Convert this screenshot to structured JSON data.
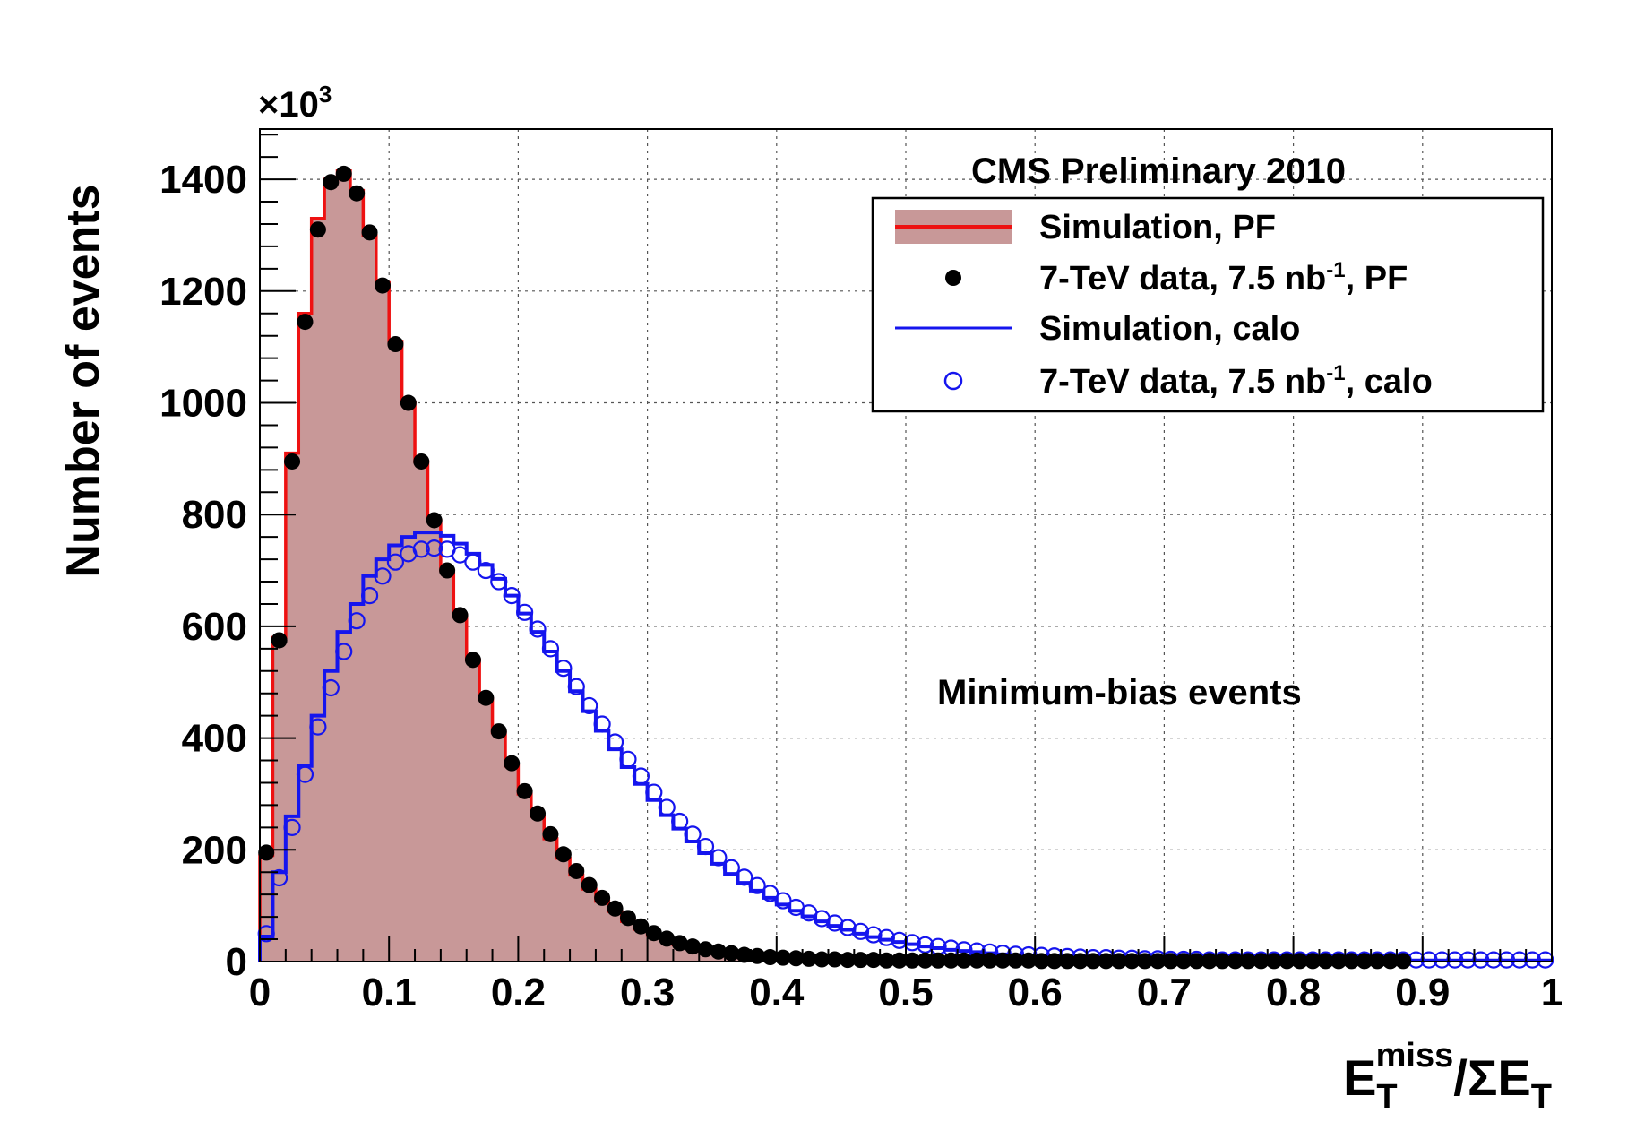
{
  "chart_data": {
    "type": "histogram",
    "title": "",
    "xlabel": "E_T^miss/ΣE_T",
    "xlabel_parts": {
      "main": "E",
      "sub": "T",
      "sup": "miss",
      "mid": "/ΣE",
      "sub2": "T"
    },
    "ylabel": "Number of events",
    "y_multiplier_text": {
      "prefix": "×10",
      "sup": "3"
    },
    "xlim": [
      0,
      1
    ],
    "ylim": [
      0,
      1490
    ],
    "x_ticks": [
      0,
      0.1,
      0.2,
      0.3,
      0.4,
      0.5,
      0.6,
      0.7,
      0.8,
      0.9,
      1
    ],
    "x_tick_labels": [
      "0",
      "0.1",
      "0.2",
      "0.3",
      "0.4",
      "0.5",
      "0.6",
      "0.7",
      "0.8",
      "0.9",
      "1"
    ],
    "y_ticks": [
      0,
      200,
      400,
      600,
      800,
      1000,
      1200,
      1400
    ],
    "y_tick_labels": [
      "0",
      "200",
      "400",
      "600",
      "800",
      "1000",
      "1200",
      "1400"
    ],
    "grid": true,
    "legend_position": "top-right",
    "annotations": [
      "CMS Preliminary 2010",
      "Minimum-bias events"
    ],
    "bin_width": 0.01,
    "pf_range": [
      0,
      0.89
    ],
    "calo_range": [
      0,
      1
    ],
    "series": [
      {
        "name": "Simulation, PF",
        "name_parts": [
          "Simulation, PF"
        ],
        "kind": "filled-histogram",
        "fill_color": "#c89898",
        "line_color": "#ee1111",
        "values": [
          190,
          580,
          910,
          1160,
          1330,
          1400,
          1415,
          1380,
          1300,
          1215,
          1110,
          1000,
          895,
          790,
          700,
          620,
          540,
          470,
          410,
          350,
          300,
          260,
          220,
          185,
          155,
          130,
          108,
          90,
          72,
          58,
          47,
          38,
          30,
          24,
          19,
          15,
          12,
          9,
          7,
          6,
          5,
          4,
          3,
          3,
          2,
          2,
          1,
          1,
          1,
          1,
          1,
          1,
          1,
          1,
          1,
          1,
          0,
          0,
          0,
          0,
          0,
          0,
          0,
          0,
          0,
          0,
          0,
          0,
          0,
          0,
          0,
          0,
          0,
          0,
          0,
          0,
          0,
          0,
          0,
          0,
          0,
          0,
          0,
          0,
          0,
          0,
          0,
          0,
          0
        ]
      },
      {
        "name": "7-TeV data, 7.5 nb-1, PF",
        "name_parts": [
          "7-TeV data, 7.5 nb",
          "-1",
          ", PF"
        ],
        "kind": "points",
        "marker": "filled-circle",
        "color": "#000000",
        "values": [
          195,
          575,
          895,
          1145,
          1310,
          1395,
          1410,
          1375,
          1305,
          1210,
          1105,
          1000,
          895,
          790,
          700,
          620,
          540,
          472,
          412,
          355,
          305,
          265,
          228,
          192,
          162,
          137,
          114,
          95,
          78,
          63,
          51,
          41,
          33,
          27,
          22,
          18,
          15,
          12,
          10,
          8,
          7,
          6,
          5,
          4,
          4,
          3,
          3,
          3,
          2,
          2,
          2,
          2,
          2,
          2,
          2,
          2,
          2,
          2,
          2,
          2,
          1,
          1,
          1,
          1,
          1,
          1,
          1,
          1,
          1,
          1,
          1,
          1,
          1,
          1,
          1,
          1,
          1,
          1,
          1,
          1,
          1,
          1,
          1,
          1,
          1,
          1,
          1,
          1,
          1
        ]
      },
      {
        "name": "Simulation, calo",
        "name_parts": [
          "Simulation, calo"
        ],
        "kind": "line-histogram",
        "color": "#1515ee",
        "values": [
          45,
          160,
          260,
          350,
          440,
          520,
          590,
          640,
          690,
          720,
          745,
          760,
          768,
          768,
          762,
          748,
          730,
          710,
          685,
          655,
          623,
          590,
          555,
          520,
          484,
          448,
          413,
          380,
          348,
          318,
          289,
          262,
          238,
          215,
          194,
          175,
          157,
          141,
          127,
          114,
          102,
          91,
          81,
          72,
          64,
          57,
          50,
          44,
          39,
          35,
          31,
          27,
          24,
          21,
          19,
          17,
          15,
          13,
          12,
          11,
          10,
          9,
          8,
          7,
          6,
          6,
          5,
          5,
          4,
          4,
          3,
          3,
          3,
          3,
          2,
          2,
          2,
          2,
          2,
          2,
          2,
          2,
          2,
          2,
          2,
          2,
          2,
          2,
          2,
          2,
          2,
          2,
          2,
          2,
          2,
          2,
          2,
          2,
          2,
          2
        ]
      },
      {
        "name": "7-TeV data, 7.5 nb-1, calo",
        "name_parts": [
          "7-TeV data, 7.5 nb",
          "-1",
          ", calo"
        ],
        "kind": "points",
        "marker": "open-circle",
        "color": "#1515ee",
        "values": [
          50,
          150,
          240,
          335,
          420,
          490,
          555,
          610,
          655,
          690,
          715,
          730,
          738,
          740,
          738,
          728,
          715,
          700,
          680,
          655,
          625,
          595,
          560,
          525,
          492,
          458,
          425,
          393,
          362,
          332,
          303,
          276,
          251,
          228,
          206,
          186,
          168,
          151,
          136,
          122,
          109,
          97,
          87,
          77,
          69,
          61,
          54,
          48,
          43,
          38,
          34,
          30,
          27,
          24,
          21,
          19,
          17,
          15,
          13,
          12,
          11,
          10,
          9,
          8,
          7,
          7,
          6,
          6,
          5,
          5,
          4,
          4,
          4,
          3,
          3,
          3,
          3,
          3,
          3,
          3,
          3,
          3,
          3,
          3,
          3,
          3,
          3,
          3,
          3,
          3,
          3,
          3,
          3,
          3,
          3,
          3,
          3,
          3,
          3,
          3
        ]
      }
    ]
  }
}
